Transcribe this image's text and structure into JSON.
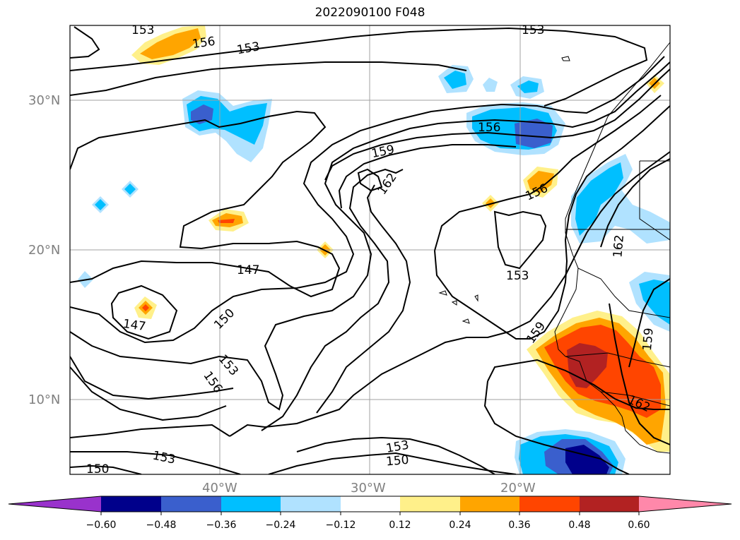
{
  "title": "2022090100 F048",
  "map": {
    "lat_labels": [
      {
        "lat": 30,
        "label": "30°N"
      },
      {
        "lat": 20,
        "label": "20°N"
      },
      {
        "lat": 10,
        "label": "10°N"
      }
    ],
    "lon_labels": [
      {
        "lon": -40,
        "label": "40°W"
      },
      {
        "lon": -30,
        "label": "30°W"
      },
      {
        "lon": -20,
        "label": "20°W"
      }
    ],
    "extent": {
      "lon_min": -50,
      "lon_max": -10,
      "lat_min": 5,
      "lat_max": 35
    },
    "gridlines": true
  },
  "contour_labels": [
    "153",
    "156",
    "153",
    "153",
    "159",
    "162",
    "156",
    "156",
    "162",
    "153",
    "147",
    "150",
    "147",
    "153",
    "156",
    "159",
    "159",
    "162",
    "153",
    "150",
    "153",
    "150"
  ],
  "colorbar": {
    "colors": [
      "#9932cc",
      "#00008b",
      "#3a5fcd",
      "#00bfff",
      "#b0e2ff",
      "#ffffff",
      "#fff08a",
      "#ffa500",
      "#ff4500",
      "#b22222",
      "#ff88aa"
    ],
    "tick_labels": [
      "−0.60",
      "−0.48",
      "−0.36",
      "−0.24",
      "−0.12",
      "0.12",
      "0.24",
      "0.36",
      "0.48",
      "0.60"
    ],
    "extend": "both"
  }
}
